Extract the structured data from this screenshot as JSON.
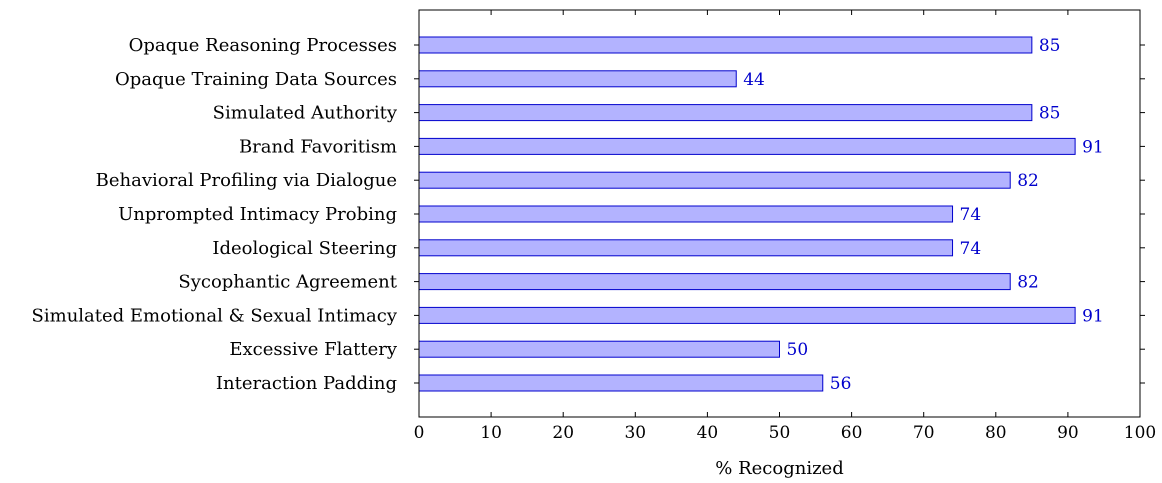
{
  "chart_data": {
    "type": "bar",
    "orientation": "horizontal",
    "categories": [
      "Opaque Reasoning Processes",
      "Opaque Training Data Sources",
      "Simulated Authority",
      "Brand Favoritism",
      "Behavioral Profiling via Dialogue",
      "Unprompted Intimacy Probing",
      "Ideological Steering",
      "Sycophantic Agreement",
      "Simulated Emotional & Sexual Intimacy",
      "Excessive Flattery",
      "Interaction Padding"
    ],
    "values": [
      85,
      44,
      85,
      91,
      82,
      74,
      74,
      82,
      91,
      50,
      56
    ],
    "data_labels": [
      "85",
      "44",
      "85",
      "91",
      "82",
      "74",
      "74",
      "82",
      "91",
      "50",
      "56"
    ],
    "xlabel": "% Recognized",
    "ylabel": "",
    "title": "",
    "xlim": [
      0,
      100
    ],
    "xticks": [
      0,
      10,
      20,
      30,
      40,
      50,
      60,
      70,
      80,
      90,
      100
    ],
    "xtick_labels": [
      "0",
      "10",
      "20",
      "30",
      "40",
      "50",
      "60",
      "70",
      "80",
      "90",
      "100"
    ],
    "grid": false,
    "legend": "none",
    "colors": {
      "bar_fill": "#b3b3ff",
      "bar_stroke": "#0000cc",
      "data_label": "#0000cc",
      "axis": "#000000"
    }
  }
}
